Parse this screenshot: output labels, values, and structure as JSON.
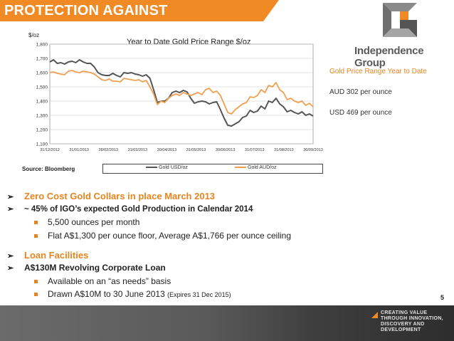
{
  "header": {
    "title": "PROTECTION AGAINST UNCERTAINTY"
  },
  "logo": {
    "company": "Independence Group"
  },
  "colors": {
    "accent": "#f08a24",
    "usd_line": "#555555",
    "aud_line": "#f0a050"
  },
  "side_panel": {
    "heading": "Gold Price Range Year to Date",
    "aud": "AUD 302 per ounce",
    "usd": "USD 469 per ounce"
  },
  "chart_data": {
    "type": "line",
    "title": "Year to Date Gold Price Range $/oz",
    "ylabel": "$/oz",
    "xlabel": "",
    "ylim": [
      1100,
      1800
    ],
    "yticks": [
      "1,100",
      "1,200",
      "1,300",
      "1,400",
      "1,500",
      "1,600",
      "1,700",
      "1,800"
    ],
    "ytick_values": [
      1100,
      1200,
      1300,
      1400,
      1500,
      1600,
      1700,
      1800
    ],
    "xticks": [
      "31/12/2012",
      "31/01/2013",
      "28/02/2013",
      "31/03/2013",
      "30/04/2013",
      "31/05/2013",
      "30/06/2013",
      "31/07/2013",
      "31/08/2013",
      "30/09/2013"
    ],
    "grid": true,
    "legend": "bottom",
    "series": [
      {
        "name": "Gold USD/oz",
        "color": "#555555",
        "values": [
          1675,
          1690,
          1665,
          1670,
          1660,
          1675,
          1680,
          1670,
          1690,
          1675,
          1665,
          1665,
          1640,
          1600,
          1585,
          1580,
          1580,
          1595,
          1580,
          1570,
          1600,
          1595,
          1600,
          1590,
          1585,
          1575,
          1585,
          1560,
          1480,
          1390,
          1400,
          1400,
          1420,
          1460,
          1470,
          1460,
          1475,
          1465,
          1420,
          1385,
          1395,
          1400,
          1395,
          1380,
          1390,
          1395,
          1340,
          1280,
          1230,
          1225,
          1240,
          1255,
          1285,
          1295,
          1335,
          1320,
          1330,
          1365,
          1345,
          1400,
          1390,
          1420,
          1380,
          1360,
          1325,
          1335,
          1320,
          1310,
          1325,
          1300,
          1310,
          1295
        ]
      },
      {
        "name": "Gold AUD/oz",
        "color": "#f0a050",
        "values": [
          1600,
          1605,
          1595,
          1590,
          1585,
          1610,
          1615,
          1605,
          1600,
          1610,
          1605,
          1600,
          1590,
          1570,
          1550,
          1545,
          1555,
          1540,
          1540,
          1535,
          1560,
          1555,
          1550,
          1545,
          1550,
          1535,
          1545,
          1500,
          1450,
          1375,
          1400,
          1390,
          1420,
          1440,
          1450,
          1440,
          1460,
          1450,
          1440,
          1450,
          1460,
          1445,
          1480,
          1490,
          1460,
          1470,
          1440,
          1380,
          1320,
          1310,
          1340,
          1360,
          1380,
          1390,
          1430,
          1425,
          1440,
          1480,
          1460,
          1510,
          1500,
          1530,
          1480,
          1460,
          1410,
          1420,
          1400,
          1390,
          1400,
          1370,
          1385,
          1360
        ]
      }
    ]
  },
  "chart_meta": {
    "source": "Source: Bloomberg"
  },
  "bullets": {
    "h1": "Zero Cost Gold Collars in place March 2013",
    "h2": "~ 45% of IGO’s expected Gold Production in Calendar 2014",
    "s1": "5,500 ounces per month",
    "s2": "Flat A$1,300 per ounce floor, Average A$1,766 per ounce ceiling",
    "h3": "Loan Facilities",
    "h4": "A$130M Revolving Corporate Loan",
    "s3": "Available on an “as needs” basis",
    "s4": "Drawn A$10M to 30 June 2013",
    "s4_note": "(Expires 31 Dec 2015)",
    "arrow_glyph": "➢"
  },
  "footer": {
    "page_number": "5",
    "tagline": "CREATING VALUE THROUGH INNOVATION, DISCOVERY AND DEVELOPMENT"
  }
}
